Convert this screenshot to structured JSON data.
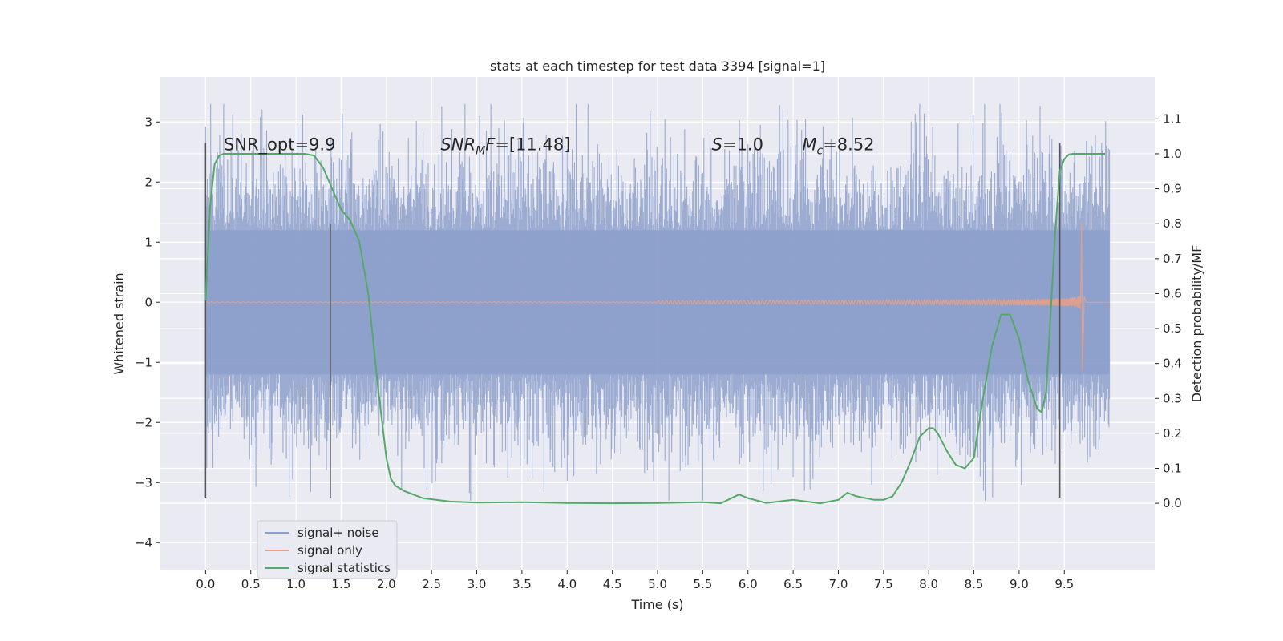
{
  "chart_data": {
    "type": "line",
    "title": "stats at each timestep for test data 3394 [signal=1]",
    "xlabel": "Time (s)",
    "ylabel": "Whitened strain",
    "y2label": "Detection probability/MF",
    "xlim": [
      -0.5,
      10.5
    ],
    "ylim": [
      -4.45,
      3.75
    ],
    "y2lim": [
      -0.19,
      1.22
    ],
    "xticks": [
      "0.0",
      "0.5",
      "1.0",
      "1.5",
      "2.0",
      "2.5",
      "3.0",
      "3.5",
      "4.0",
      "4.5",
      "5.0",
      "5.5",
      "6.0",
      "6.5",
      "7.0",
      "7.5",
      "8.0",
      "8.5",
      "9.0",
      "9.5"
    ],
    "yticks": [
      3,
      2,
      1,
      0,
      -1,
      -2,
      -3,
      -4
    ],
    "y2ticks": [
      "1.1",
      "1.0",
      "0.9",
      "0.8",
      "0.7",
      "0.6",
      "0.5",
      "0.4",
      "0.3",
      "0.2",
      "0.1",
      "0.0"
    ],
    "grid": true,
    "legend_position": "lower-left",
    "series": [
      {
        "name": "signal+ noise",
        "color": "#8da0cb",
        "kind": "noise",
        "t_start": 0.0,
        "t_end": 10.0,
        "envelope": [
          -2.0,
          2.0
        ]
      },
      {
        "name": "signal only",
        "color": "#e6a088",
        "kind": "chirp",
        "t_start": 0.0,
        "t_merge": 9.68,
        "t_end": 10.0,
        "peak": 1.35
      },
      {
        "name": "signal statistics",
        "color": "#55a868",
        "axis": "y2",
        "x": [
          0.0,
          0.05,
          0.1,
          0.15,
          0.2,
          0.3,
          0.5,
          0.8,
          1.0,
          1.1,
          1.2,
          1.3,
          1.4,
          1.5,
          1.6,
          1.7,
          1.8,
          1.9,
          2.0,
          2.05,
          2.1,
          2.2,
          2.4,
          2.7,
          3.0,
          3.5,
          4.0,
          4.5,
          5.0,
          5.5,
          5.7,
          5.9,
          6.0,
          6.2,
          6.5,
          6.8,
          7.0,
          7.1,
          7.2,
          7.4,
          7.5,
          7.6,
          7.7,
          7.8,
          7.9,
          8.0,
          8.05,
          8.1,
          8.2,
          8.3,
          8.4,
          8.5,
          8.6,
          8.7,
          8.8,
          8.9,
          9.0,
          9.1,
          9.2,
          9.25,
          9.3,
          9.35,
          9.4,
          9.45,
          9.5,
          9.55,
          9.6,
          9.7,
          9.8,
          9.95
        ],
        "values": [
          0.58,
          0.85,
          0.97,
          0.995,
          1.0,
          1.0,
          1.0,
          1.0,
          1.0,
          1.0,
          0.995,
          0.96,
          0.9,
          0.84,
          0.81,
          0.75,
          0.6,
          0.35,
          0.13,
          0.07,
          0.05,
          0.035,
          0.015,
          0.005,
          0.002,
          0.003,
          0.001,
          0.0,
          0.001,
          0.003,
          0.0,
          0.025,
          0.015,
          0.001,
          0.01,
          0.0,
          0.01,
          0.03,
          0.02,
          0.01,
          0.01,
          0.02,
          0.06,
          0.12,
          0.19,
          0.215,
          0.215,
          0.2,
          0.15,
          0.11,
          0.1,
          0.13,
          0.3,
          0.45,
          0.54,
          0.54,
          0.47,
          0.35,
          0.27,
          0.26,
          0.32,
          0.55,
          0.78,
          0.95,
          0.985,
          0.998,
          1.0,
          1.0,
          1.0,
          1.0
        ]
      }
    ],
    "vlines": [
      {
        "x": 0.0,
        "ymin": -3.25,
        "ymax": 2.65
      },
      {
        "x": 1.38,
        "ymin": -3.25,
        "ymax": 1.3
      },
      {
        "x": 9.45,
        "ymin": -3.25,
        "ymax": 2.65
      }
    ],
    "annotations": [
      {
        "id": "snr-opt",
        "pre": "SNR_opt=9.9",
        "sub": "",
        "post": "",
        "italic": false,
        "x": 0.2
      },
      {
        "id": "snr-mf",
        "pre": "SNR",
        "sub": "M",
        "post": "F=[11.48]",
        "italic": true,
        "x": 2.6
      },
      {
        "id": "s",
        "pre": "S",
        "sub": "",
        "post": "=1.0",
        "italic": true,
        "x": 5.6
      },
      {
        "id": "mc",
        "pre": "M",
        "sub": "c",
        "post": "=8.52",
        "italic": true,
        "x": 6.6
      }
    ],
    "annotation_y": 2.65,
    "legend": [
      {
        "label": "signal+ noise",
        "color": "#8da0cb"
      },
      {
        "label": "signal only",
        "color": "#e6a088"
      },
      {
        "label": "signal statistics",
        "color": "#55a868"
      }
    ]
  }
}
